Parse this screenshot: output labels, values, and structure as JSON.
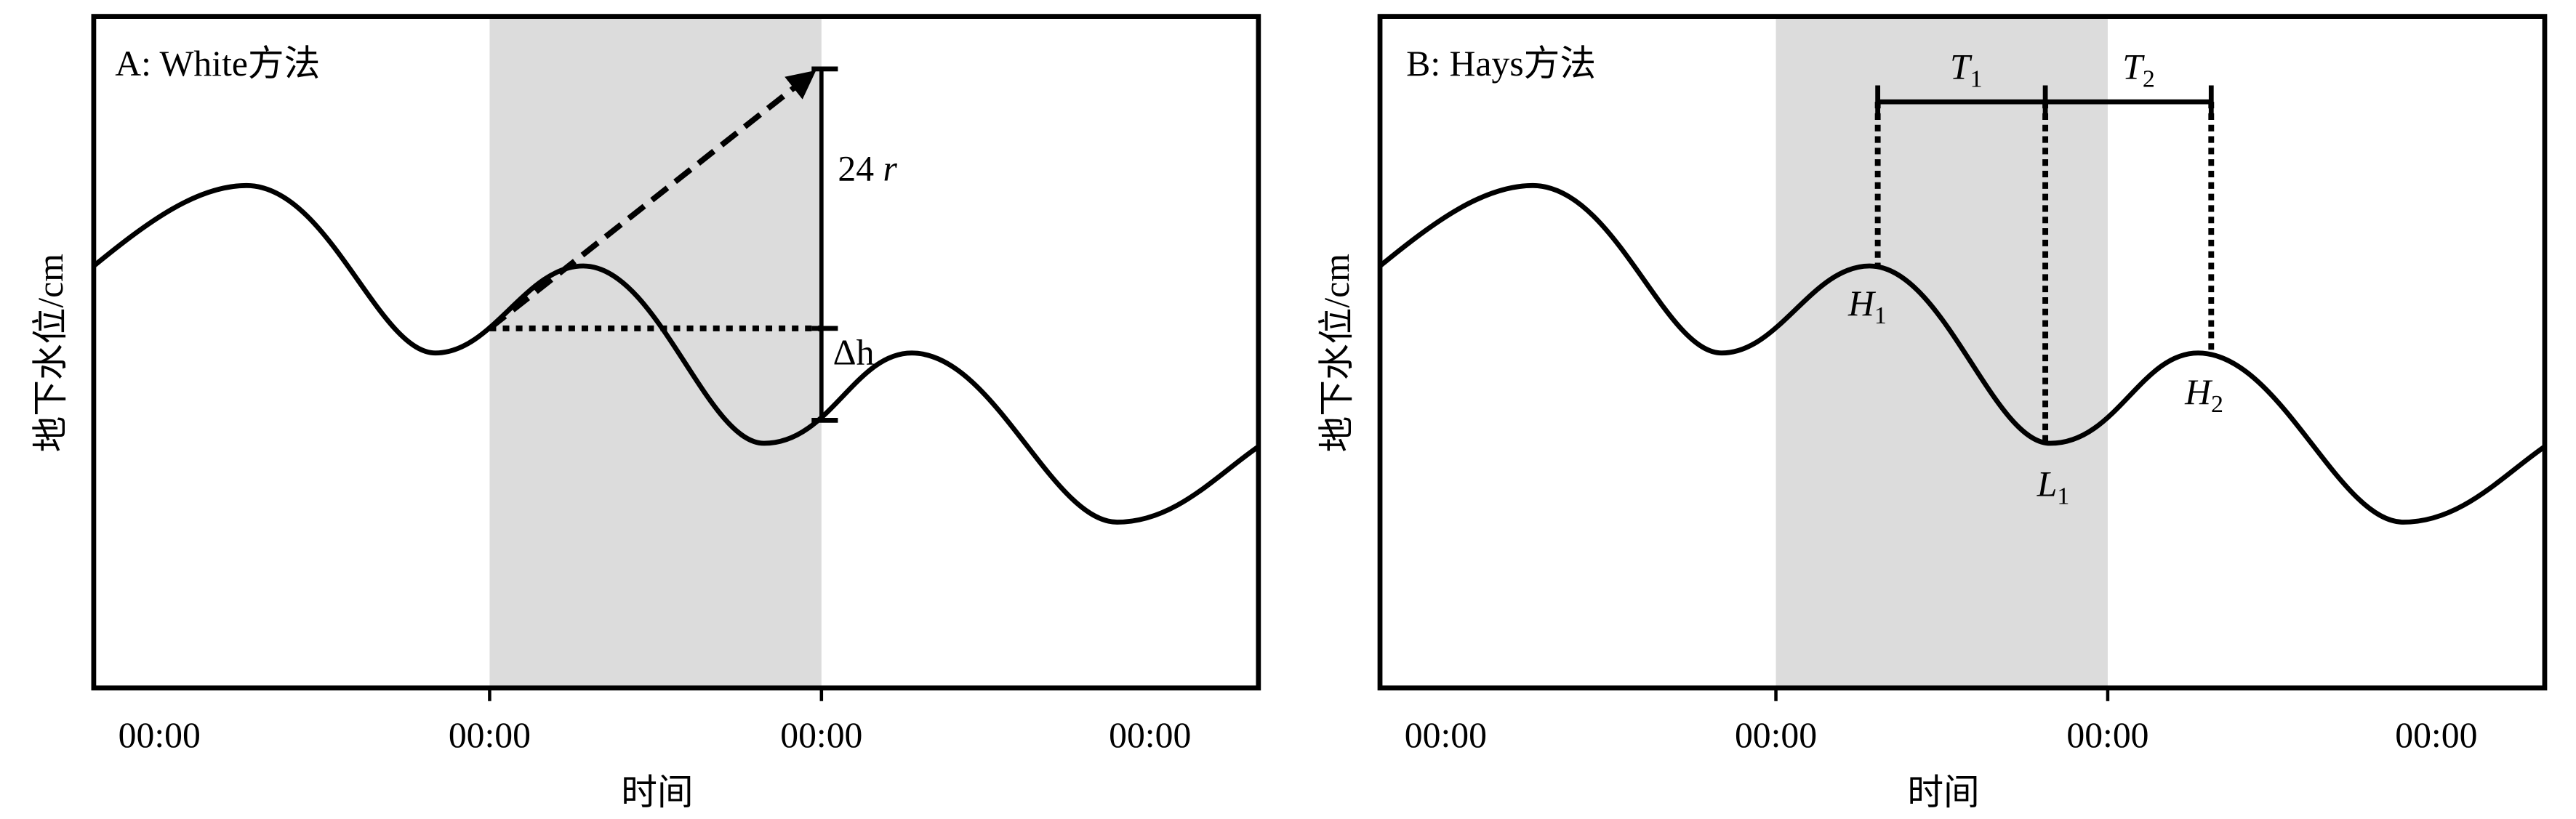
{
  "panels": [
    {
      "label": "A: White方法",
      "y_label": "地下水位/cm",
      "x_label": "时间",
      "x_ticks": [
        "00:00",
        "00:00",
        "00:00",
        "00:00"
      ],
      "rise": {
        "main": "24",
        "var": "r"
      },
      "delta": {
        "main": "Δh"
      }
    },
    {
      "label": "B: Hays方法",
      "y_label": "地下水位/cm",
      "x_label": "时间",
      "x_ticks": [
        "00:00",
        "00:00",
        "00:00",
        "00:00"
      ],
      "periods": [
        {
          "main": "T",
          "sub": "1"
        },
        {
          "main": "T",
          "sub": "2"
        }
      ],
      "points": [
        {
          "main": "H",
          "sub": "1"
        },
        {
          "main": "L",
          "sub": "1"
        },
        {
          "main": "H",
          "sub": "2"
        }
      ]
    }
  ]
}
